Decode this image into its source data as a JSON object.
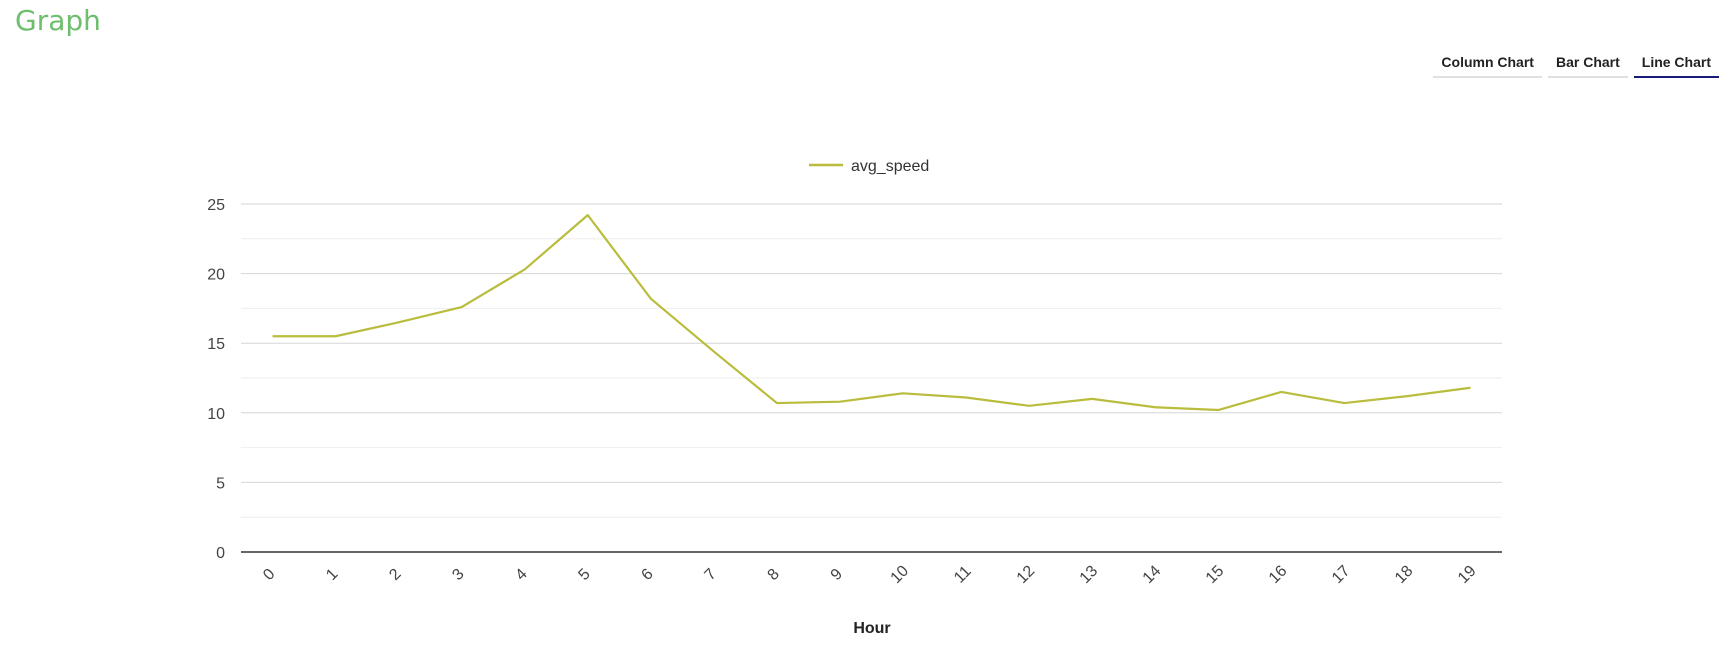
{
  "page": {
    "title": "Graph"
  },
  "tabs": [
    {
      "label": "Column Chart",
      "active": false
    },
    {
      "label": "Bar Chart",
      "active": false
    },
    {
      "label": "Line Chart",
      "active": true
    }
  ],
  "colors": {
    "series": "#b9bc3c",
    "title": "#6dbf6d",
    "active_tab": "#1a1a7a"
  },
  "chart_data": {
    "type": "line",
    "title": "",
    "xlabel": "Hour",
    "ylabel": "",
    "x": [
      "0",
      "1",
      "2",
      "3",
      "4",
      "5",
      "6",
      "7",
      "8",
      "9",
      "10",
      "11",
      "12",
      "13",
      "14",
      "15",
      "16",
      "17",
      "18",
      "19"
    ],
    "series": [
      {
        "name": "avg_speed",
        "values": [
          15.5,
          15.5,
          16.5,
          17.6,
          20.3,
          24.2,
          18.2,
          14.4,
          10.7,
          10.8,
          11.4,
          11.1,
          10.5,
          11.0,
          10.4,
          10.2,
          11.5,
          10.7,
          11.2,
          11.8
        ]
      }
    ],
    "ylim": [
      0,
      25
    ],
    "yticks": [
      0,
      5,
      10,
      15,
      20,
      25
    ],
    "grid": true,
    "legend": "top-center"
  }
}
